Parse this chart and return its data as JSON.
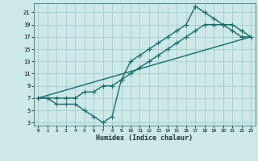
{
  "xlabel": "Humidex (Indice chaleur)",
  "bg_color": "#cce8e8",
  "grid_color": "#aacccc",
  "line_color": "#1a6b6b",
  "marker": "+",
  "marker_size": 4,
  "line_width": 1.0,
  "xlim": [
    -0.5,
    23.5
  ],
  "ylim": [
    2.5,
    22.5
  ],
  "xticks": [
    0,
    1,
    2,
    3,
    4,
    5,
    6,
    7,
    8,
    9,
    10,
    11,
    12,
    13,
    14,
    15,
    16,
    17,
    18,
    19,
    20,
    21,
    22,
    23
  ],
  "yticks": [
    3,
    5,
    7,
    9,
    11,
    13,
    15,
    17,
    19,
    21
  ],
  "line1_x": [
    0,
    1,
    2,
    3,
    4,
    5,
    6,
    7,
    8,
    9,
    10,
    11,
    12,
    13,
    14,
    15,
    16,
    17,
    18,
    19,
    20,
    21,
    22,
    23
  ],
  "line1_y": [
    7,
    7,
    7,
    7,
    7,
    8,
    8,
    9,
    9,
    10,
    11,
    12,
    13,
    14,
    15,
    16,
    17,
    18,
    19,
    19,
    19,
    19,
    18,
    17
  ],
  "line2_x": [
    0,
    1,
    2,
    3,
    4,
    5,
    6,
    7,
    8,
    9,
    10,
    11,
    12,
    13,
    14,
    15,
    16,
    17,
    18,
    19,
    20,
    21,
    22,
    23
  ],
  "line2_y": [
    7,
    7,
    6,
    6,
    6,
    5,
    4,
    3,
    4,
    10,
    13,
    14,
    15,
    16,
    17,
    18,
    19,
    22,
    21,
    20,
    19,
    18,
    17,
    17
  ],
  "line3_x": [
    0,
    23
  ],
  "line3_y": [
    7,
    17
  ]
}
